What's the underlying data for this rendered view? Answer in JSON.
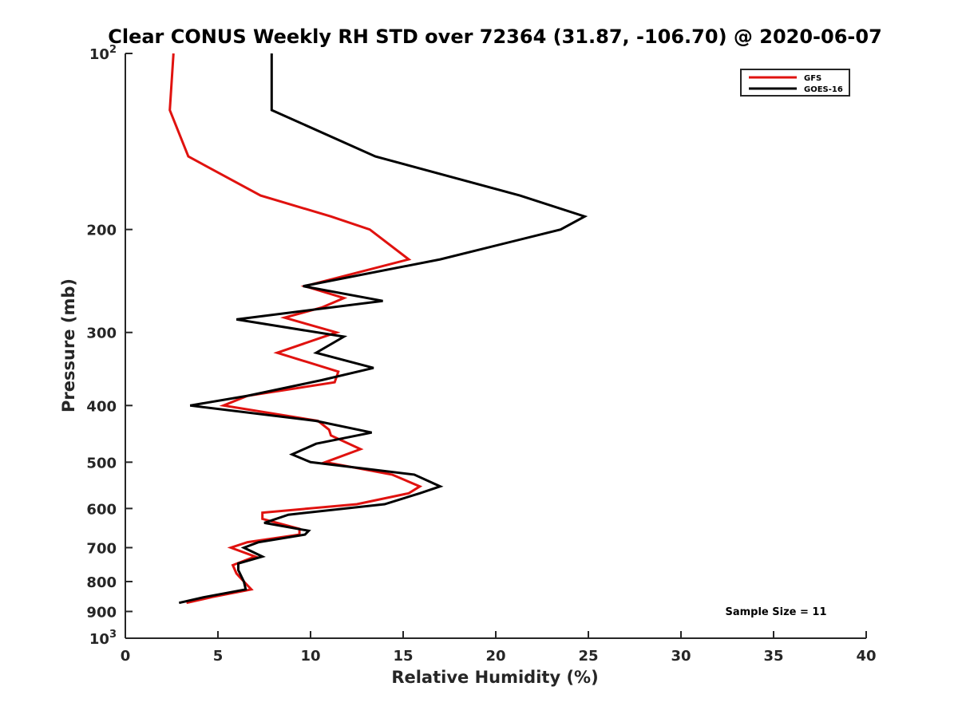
{
  "chart_data": {
    "type": "line",
    "title": "Clear CONUS Weekly RH STD over 72364 (31.87, -106.70) @ 2020-06-07",
    "xlabel": "Relative Humidity (%)",
    "ylabel": "Pressure (mb)",
    "xlim": [
      0,
      40
    ],
    "ylim": [
      100,
      1000
    ],
    "yscale": "log",
    "y_reversed": true,
    "grid": false,
    "legend_position": "top-right",
    "xticks": [
      0,
      5,
      10,
      15,
      20,
      25,
      30,
      35,
      40
    ],
    "xtick_labels": [
      "0",
      "5",
      "10",
      "15",
      "20",
      "25",
      "30",
      "35",
      "40"
    ],
    "yticks": [
      100,
      200,
      300,
      400,
      500,
      600,
      700,
      800,
      900,
      1000
    ],
    "ytick_labels": [
      {
        "base": "10",
        "exp": "2"
      },
      {
        "base": "200",
        "exp": ""
      },
      {
        "base": "300",
        "exp": ""
      },
      {
        "base": "400",
        "exp": ""
      },
      {
        "base": "500",
        "exp": ""
      },
      {
        "base": "600",
        "exp": ""
      },
      {
        "base": "700",
        "exp": ""
      },
      {
        "base": "800",
        "exp": ""
      },
      {
        "base": "900",
        "exp": ""
      },
      {
        "base": "10",
        "exp": "3"
      }
    ],
    "annotation": "Sample Size = 11",
    "series": [
      {
        "name": "GFS",
        "color": "#e0120f",
        "points": [
          [
            2.6,
            100
          ],
          [
            2.4,
            125
          ],
          [
            3.4,
            150
          ],
          [
            7.3,
            175
          ],
          [
            11.1,
            190
          ],
          [
            13.2,
            200
          ],
          [
            15.3,
            225
          ],
          [
            9.7,
            250
          ],
          [
            11.8,
            262
          ],
          [
            10.6,
            272
          ],
          [
            8.6,
            283
          ],
          [
            11.4,
            300
          ],
          [
            8.2,
            325
          ],
          [
            11.5,
            350
          ],
          [
            11.3,
            365
          ],
          [
            6.6,
            385
          ],
          [
            5.3,
            400
          ],
          [
            10.4,
            425
          ],
          [
            11.0,
            440
          ],
          [
            11.1,
            450
          ],
          [
            12.7,
            475
          ],
          [
            10.8,
            500
          ],
          [
            14.4,
            525
          ],
          [
            15.9,
            550
          ],
          [
            15.3,
            565
          ],
          [
            12.5,
            590
          ],
          [
            7.4,
            610
          ],
          [
            7.4,
            625
          ],
          [
            9.4,
            650
          ],
          [
            9.4,
            665
          ],
          [
            6.6,
            685
          ],
          [
            5.7,
            700
          ],
          [
            7.0,
            725
          ],
          [
            5.8,
            750
          ],
          [
            6.0,
            775
          ],
          [
            6.4,
            800
          ],
          [
            6.8,
            825
          ],
          [
            4.7,
            850
          ],
          [
            3.3,
            870
          ]
        ]
      },
      {
        "name": "GOES-16",
        "color": "#000000",
        "points": [
          [
            7.9,
            100
          ],
          [
            7.9,
            125
          ],
          [
            13.5,
            150
          ],
          [
            21.3,
            175
          ],
          [
            24.8,
            190
          ],
          [
            23.5,
            200
          ],
          [
            17.0,
            225
          ],
          [
            9.6,
            250
          ],
          [
            13.9,
            265
          ],
          [
            6.0,
            285
          ],
          [
            11.8,
            305
          ],
          [
            10.3,
            325
          ],
          [
            13.4,
            345
          ],
          [
            10.6,
            362
          ],
          [
            6.6,
            385
          ],
          [
            3.5,
            400
          ],
          [
            10.3,
            425
          ],
          [
            13.3,
            445
          ],
          [
            10.3,
            465
          ],
          [
            9.0,
            485
          ],
          [
            10.0,
            500
          ],
          [
            15.6,
            525
          ],
          [
            17.0,
            550
          ],
          [
            15.9,
            565
          ],
          [
            14.0,
            590
          ],
          [
            8.8,
            615
          ],
          [
            7.5,
            635
          ],
          [
            9.9,
            655
          ],
          [
            9.7,
            665
          ],
          [
            7.2,
            685
          ],
          [
            6.4,
            700
          ],
          [
            7.4,
            725
          ],
          [
            6.1,
            745
          ],
          [
            6.1,
            765
          ],
          [
            6.4,
            800
          ],
          [
            6.5,
            825
          ],
          [
            4.3,
            850
          ],
          [
            2.9,
            870
          ]
        ]
      }
    ]
  }
}
